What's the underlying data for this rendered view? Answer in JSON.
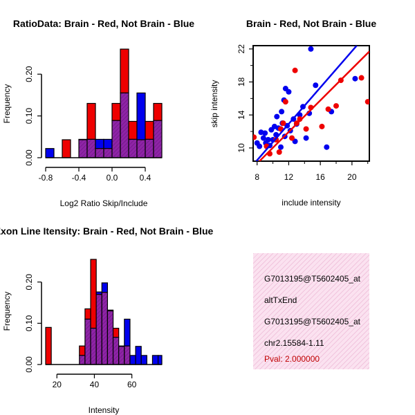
{
  "colors": {
    "brain": "#ee0000",
    "not_brain": "#0000ee",
    "overlap": "#8e24a6",
    "info_bg": "#fbe2f0",
    "pval": "#c00000"
  },
  "chart_data": [
    {
      "id": "ratio_hist",
      "type": "bar",
      "title": "RatioData: Brain - Red, Not Brain - Blue",
      "xlabel": "Log2 Ratio Skip/Include",
      "ylabel": "Frequency",
      "xlim": [
        -0.8,
        0.6
      ],
      "ylim": [
        0,
        0.26
      ],
      "xticks": [
        -0.8,
        -0.4,
        0.0,
        0.4
      ],
      "xtick_labels": [
        "-0.8",
        "-0.4",
        "0.0",
        "0.4"
      ],
      "yticks": [
        0.0,
        0.1,
        0.2
      ],
      "ytick_labels": [
        "0.00",
        "0.10",
        "0.20"
      ],
      "bin_edges": [
        -0.8,
        -0.7,
        -0.6,
        -0.5,
        -0.4,
        -0.3,
        -0.2,
        -0.1,
        0.0,
        0.1,
        0.2,
        0.3,
        0.4,
        0.5,
        0.6
      ],
      "series": [
        {
          "name": "Brain",
          "values": [
            0,
            0,
            0.043,
            0,
            0.043,
            0.13,
            0.022,
            0.022,
            0.13,
            0.26,
            0.087,
            0.043,
            0.087,
            0.13
          ]
        },
        {
          "name": "Not Brain",
          "values": [
            0.022,
            0,
            0,
            0,
            0.044,
            0.044,
            0.044,
            0.044,
            0.089,
            0.155,
            0.044,
            0.155,
            0.044,
            0.089
          ]
        }
      ]
    },
    {
      "id": "scatter",
      "type": "scatter",
      "title": "Brain - Red, Not Brain - Blue",
      "xlabel": "include intensity",
      "ylabel": "skip intensity",
      "xlim": [
        7.5,
        22.2
      ],
      "ylim": [
        8.4,
        22.4
      ],
      "xticks": [
        8,
        12,
        16,
        20
      ],
      "yticks": [
        10,
        14,
        18,
        22
      ],
      "series": [
        {
          "name": "Brain",
          "x": [
            7.6,
            9.2,
            9.6,
            10.4,
            10.8,
            11.0,
            11.3,
            11.6,
            12.4,
            12.8,
            13.0,
            13.4,
            14.2,
            14.8,
            16.2,
            17.0,
            18.0,
            18.6,
            21.2,
            22.0
          ],
          "y": [
            11.3,
            10.2,
            9.3,
            11.0,
            9.5,
            12.3,
            13.0,
            15.6,
            11.2,
            19.4,
            13.0,
            13.5,
            12.3,
            14.9,
            12.6,
            14.7,
            15.1,
            18.2,
            18.5,
            15.6
          ],
          "fit": [
            [
              8.3,
              8.4
            ],
            [
              22.2,
              21.7
            ]
          ]
        },
        {
          "name": "Not Brain",
          "x": [
            8.0,
            8.3,
            8.5,
            8.8,
            9.0,
            9.1,
            9.4,
            9.6,
            9.8,
            10.0,
            10.2,
            10.4,
            10.5,
            10.7,
            11.0,
            11.1,
            11.2,
            11.4,
            11.5,
            11.6,
            11.8,
            12.0,
            12.2,
            12.6,
            12.8,
            13.0,
            13.4,
            13.8,
            14.2,
            14.6,
            14.8,
            15.4,
            16.8,
            17.4,
            20.4
          ],
          "y": [
            10.6,
            10.2,
            11.9,
            11.2,
            11.8,
            10.6,
            11.0,
            10.3,
            12.2,
            11.0,
            12.6,
            11.6,
            13.8,
            12.4,
            10.1,
            14.4,
            13.0,
            15.8,
            11.4,
            17.2,
            12.7,
            16.8,
            12.1,
            13.5,
            10.8,
            12.9,
            14.0,
            15.0,
            11.2,
            14.2,
            22.0,
            17.6,
            10.1,
            14.4,
            18.4
          ],
          "fit": [
            [
              7.9,
              8.4
            ],
            [
              20.6,
              22.4
            ]
          ]
        }
      ]
    },
    {
      "id": "intensity_hist",
      "type": "bar",
      "title": "Exon Line Itensity: Brain - Red, Not Brain - Blue",
      "xlabel": "Intensity",
      "ylabel": "Frequency",
      "xlim": [
        14,
        76
      ],
      "ylim": [
        0,
        0.26
      ],
      "xticks": [
        20,
        40,
        60
      ],
      "xtick_labels": [
        "20",
        "40",
        "60"
      ],
      "yticks": [
        0.0,
        0.1,
        0.2
      ],
      "ytick_labels": [
        "0.00",
        "0.10",
        "0.20"
      ],
      "bin_edges": [
        14,
        17,
        20,
        23,
        26,
        29,
        32,
        35,
        38,
        41,
        44,
        47,
        50,
        53,
        56,
        59,
        62,
        65,
        68,
        71,
        74,
        76
      ],
      "series": [
        {
          "name": "Brain",
          "values": [
            0.09,
            0,
            0,
            0,
            0,
            0,
            0.045,
            0.135,
            0.255,
            0.17,
            0.175,
            0.13,
            0.088,
            0.045,
            0.045,
            0.0,
            0.0,
            0.0,
            0.0,
            0.0,
            0.0
          ]
        },
        {
          "name": "Not Brain",
          "values": [
            0,
            0,
            0,
            0,
            0,
            0,
            0.022,
            0.11,
            0.088,
            0.176,
            0.198,
            0.132,
            0.066,
            0.044,
            0.11,
            0.022,
            0.044,
            0.022,
            0.0,
            0.022,
            0.022
          ]
        }
      ]
    }
  ],
  "info": {
    "line1": "G7013195@T5602405_at",
    "line2": "altTxEnd",
    "line3": "G7013195@T5602405_at",
    "line4": "chr2.15584-1.11",
    "pval": "Pval: 2.000000"
  }
}
